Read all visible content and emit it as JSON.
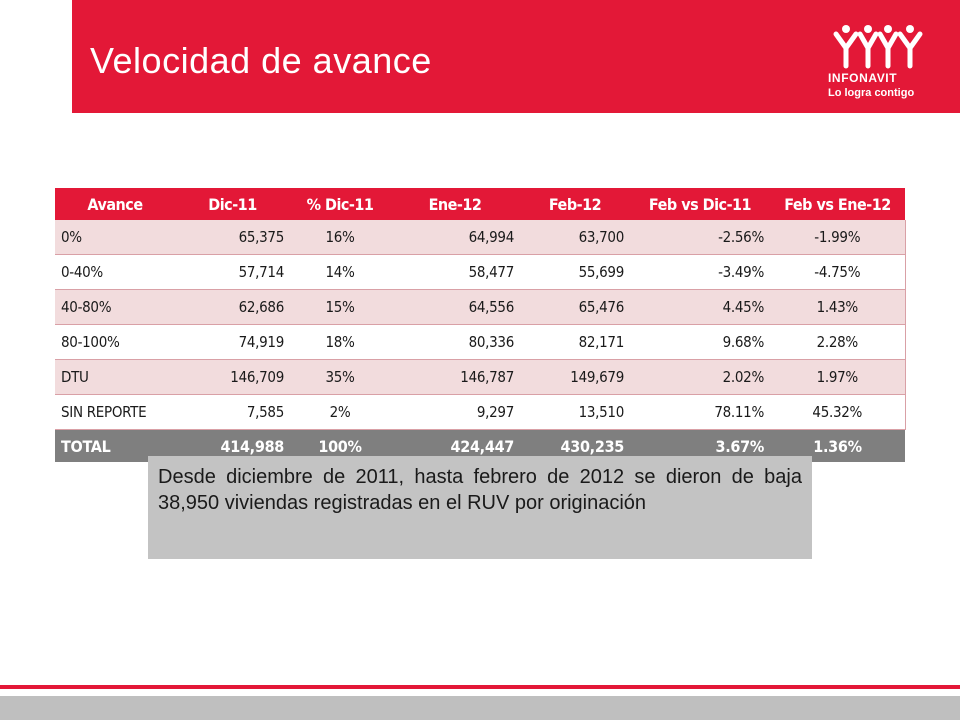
{
  "slide": {
    "title": "Velocidad de avance",
    "logo": {
      "name": "INFONAVIT",
      "tagline": "Lo logra contigo"
    }
  },
  "table": {
    "headers": [
      "Avance",
      "Dic-11",
      "% Dic-11",
      "Ene-12",
      "Feb-12",
      "Feb vs Dic-11",
      "Feb vs Ene-12"
    ],
    "rows": [
      [
        "0%",
        "65,375",
        "16%",
        "64,994",
        "63,700",
        "-2.56%",
        "-1.99%"
      ],
      [
        "0-40%",
        "57,714",
        "14%",
        "58,477",
        "55,699",
        "-3.49%",
        "-4.75%"
      ],
      [
        "40-80%",
        "62,686",
        "15%",
        "64,556",
        "65,476",
        "4.45%",
        "1.43%"
      ],
      [
        "80-100%",
        "74,919",
        "18%",
        "80,336",
        "82,171",
        "9.68%",
        "2.28%"
      ],
      [
        "DTU",
        "146,709",
        "35%",
        "146,787",
        "149,679",
        "2.02%",
        "1.97%"
      ],
      [
        "SIN REPORTE",
        "7,585",
        "2%",
        "9,297",
        "13,510",
        "78.11%",
        "45.32%"
      ]
    ],
    "total": [
      "TOTAL",
      "414,988",
      "100%",
      "424,447",
      "430,235",
      "3.67%",
      "1.36%"
    ]
  },
  "note": "Desde diciembre de 2011, hasta febrero de 2012 se dieron de baja 38,950 viviendas registradas en el RUV por originación",
  "colors": {
    "brand_red": "#e31837",
    "row_pink": "#f2dcdd",
    "total_gray": "#7f7f7f",
    "note_gray": "#c3c3c3"
  }
}
